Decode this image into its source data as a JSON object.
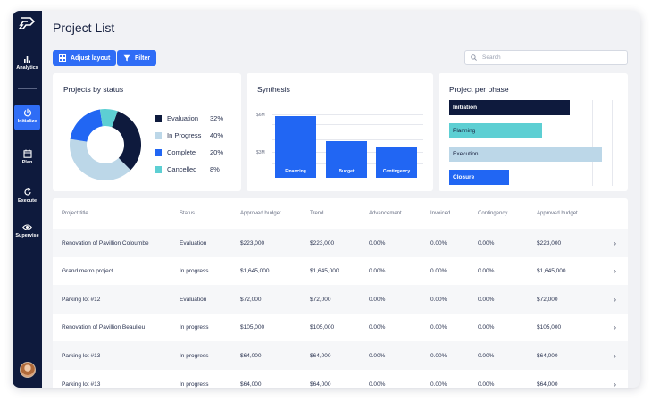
{
  "sidebar": {
    "items": [
      {
        "label": "Analytics",
        "icon": "bar-chart-icon"
      },
      {
        "label": "Initialize",
        "icon": "power-icon",
        "active": true
      },
      {
        "label": "Plan",
        "icon": "calendar-icon"
      },
      {
        "label": "Execute",
        "icon": "refresh-icon"
      },
      {
        "label": "Supervise",
        "icon": "eye-icon"
      }
    ]
  },
  "header": {
    "title": "Project List",
    "adjust_layout": "Adjust layout",
    "filter": "Filter",
    "search_placeholder": "Search"
  },
  "status_card": {
    "title": "Projects by status",
    "legend": [
      {
        "label": "Evaluation",
        "pct": "32%",
        "color": "#0e1a3d"
      },
      {
        "label": "In Progress",
        "pct": "40%",
        "color": "#bcd7e8"
      },
      {
        "label": "Complete",
        "pct": "20%",
        "color": "#2166f3"
      },
      {
        "label": "Cancelled",
        "pct": "8%",
        "color": "#5dcfd3"
      }
    ]
  },
  "synthesis_card": {
    "title": "Synthesis",
    "y_ticks": [
      "$6M",
      "$3M"
    ],
    "bars": [
      {
        "label": "Financing"
      },
      {
        "label": "Budget"
      },
      {
        "label": "Contingency"
      }
    ]
  },
  "phase_card": {
    "title": "Project per phase",
    "phases": [
      {
        "label": "Initiation",
        "color": "#0e1a3d",
        "text_color": "#ffffff"
      },
      {
        "label": "Planning",
        "color": "#5dcfd3",
        "text_color": "#1b2340"
      },
      {
        "label": "Execution",
        "color": "#bcd7e8",
        "text_color": "#1b2340"
      },
      {
        "label": "Closure",
        "color": "#2166f3",
        "text_color": "#ffffff"
      }
    ]
  },
  "chart_data": [
    {
      "type": "pie",
      "title": "Projects by status",
      "categories": [
        "Evaluation",
        "In Progress",
        "Complete",
        "Cancelled"
      ],
      "values": [
        32,
        40,
        20,
        8
      ],
      "colors": [
        "#0e1a3d",
        "#bcd7e8",
        "#2166f3",
        "#5dcfd3"
      ],
      "legend": "right"
    },
    {
      "type": "bar",
      "title": "Synthesis",
      "categories": [
        "Financing",
        "Budget",
        "Contingency"
      ],
      "values": [
        6.9,
        4.1,
        3.4
      ],
      "y_ticks": [
        "$3M",
        "$6M"
      ],
      "ylim": [
        0,
        8.4
      ],
      "grid": true
    },
    {
      "type": "bar",
      "title": "Project per phase",
      "orientation": "horizontal",
      "categories": [
        "Initiation",
        "Planning",
        "Execution",
        "Closure"
      ],
      "values": [
        0.78,
        0.6,
        0.99,
        0.39
      ],
      "xlim": [
        0,
        1.1
      ],
      "grid": true
    }
  ],
  "table": {
    "headers": [
      "Project title",
      "Status",
      "Approved budget",
      "Trend",
      "Advancement",
      "Invoiced",
      "Contingency",
      "Approved budget"
    ],
    "rows": [
      [
        "Renovation of Pavillion Coloumbe",
        "Evaluation",
        "$223,000",
        "$223,000",
        "0.00%",
        "0.00%",
        "0.00%",
        "$223,000"
      ],
      [
        "Grand metro project",
        "In progress",
        "$1,645,000",
        "$1,645,000",
        "0.00%",
        "0.00%",
        "0.00%",
        "$1,645,000"
      ],
      [
        "Parking lot #12",
        "Evaluation",
        "$72,000",
        "$72,000",
        "0.00%",
        "0.00%",
        "0.00%",
        "$72,000"
      ],
      [
        "Renovation of Pavillion Beaulieu",
        "In progress",
        "$105,000",
        "$105,000",
        "0.00%",
        "0.00%",
        "0.00%",
        "$105,000"
      ],
      [
        "Parking lot #13",
        "In progress",
        "$64,000",
        "$64,000",
        "0.00%",
        "0.00%",
        "0.00%",
        "$64,000"
      ],
      [
        "Parking lot #13",
        "In progress",
        "$64,000",
        "$64,000",
        "0.00%",
        "0.00%",
        "0.00%",
        "$64,000"
      ]
    ]
  }
}
